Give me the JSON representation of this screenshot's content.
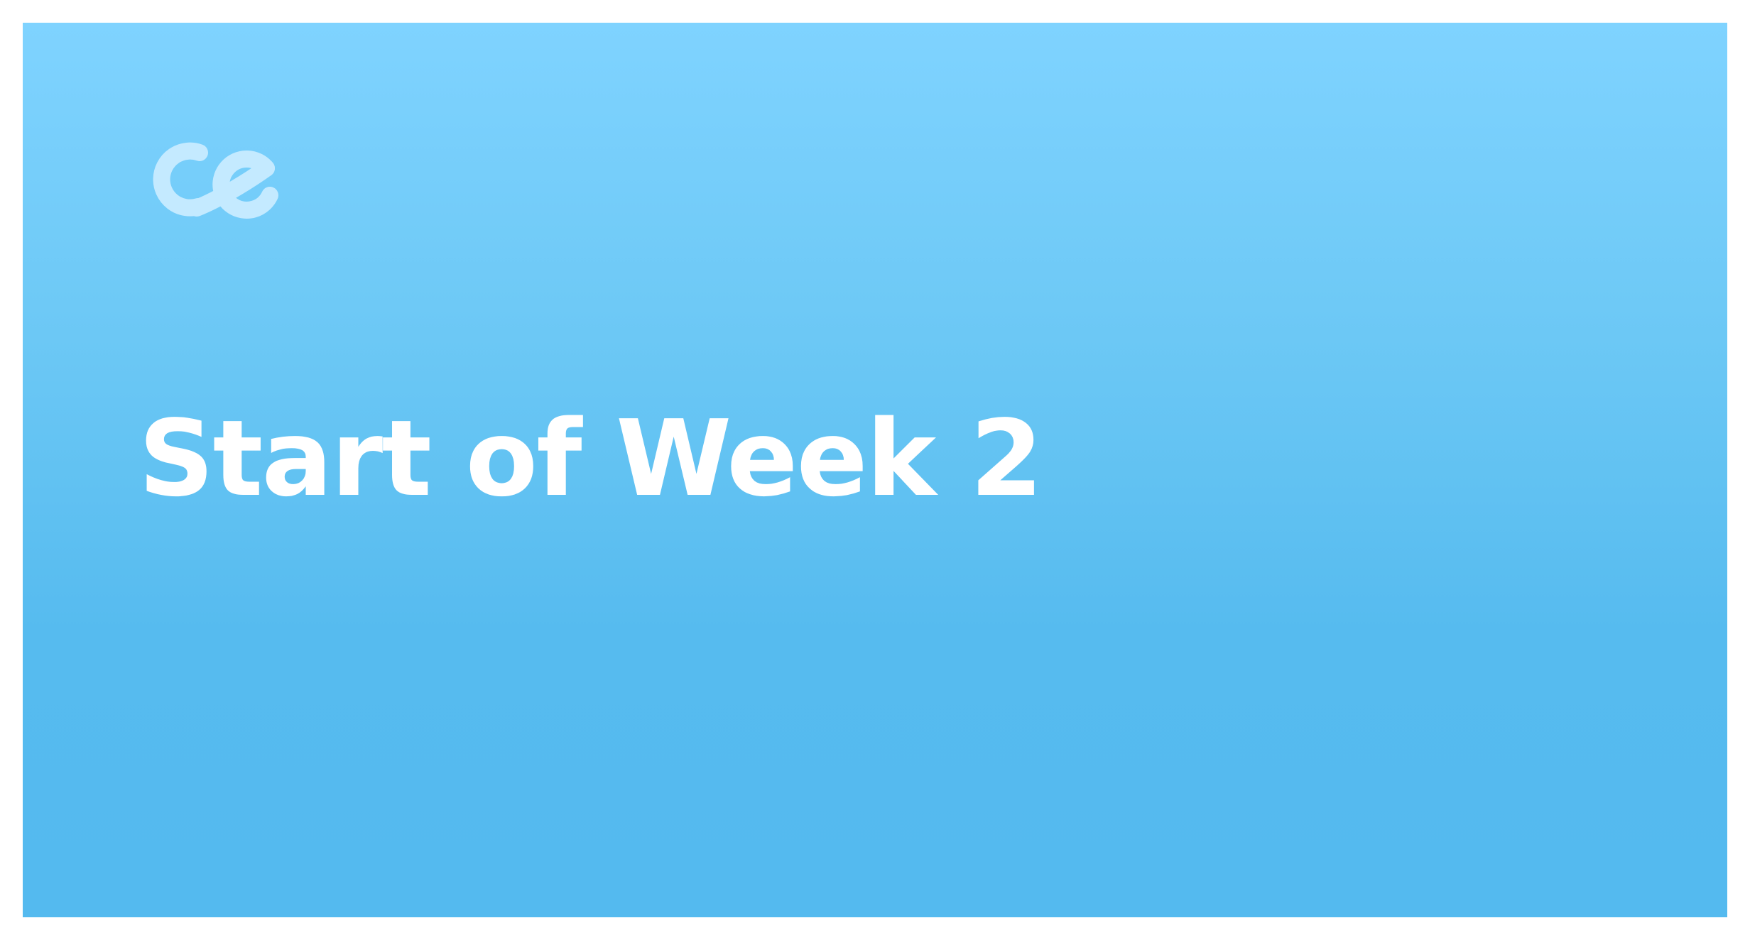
{
  "slide": {
    "title": "Start of Week 2",
    "logo_icon": "ce-logo-icon",
    "background_top": "#7fd3ff",
    "background_bottom": "#54baef",
    "title_color": "#ffffff",
    "logo_color": "#c4eaff"
  }
}
